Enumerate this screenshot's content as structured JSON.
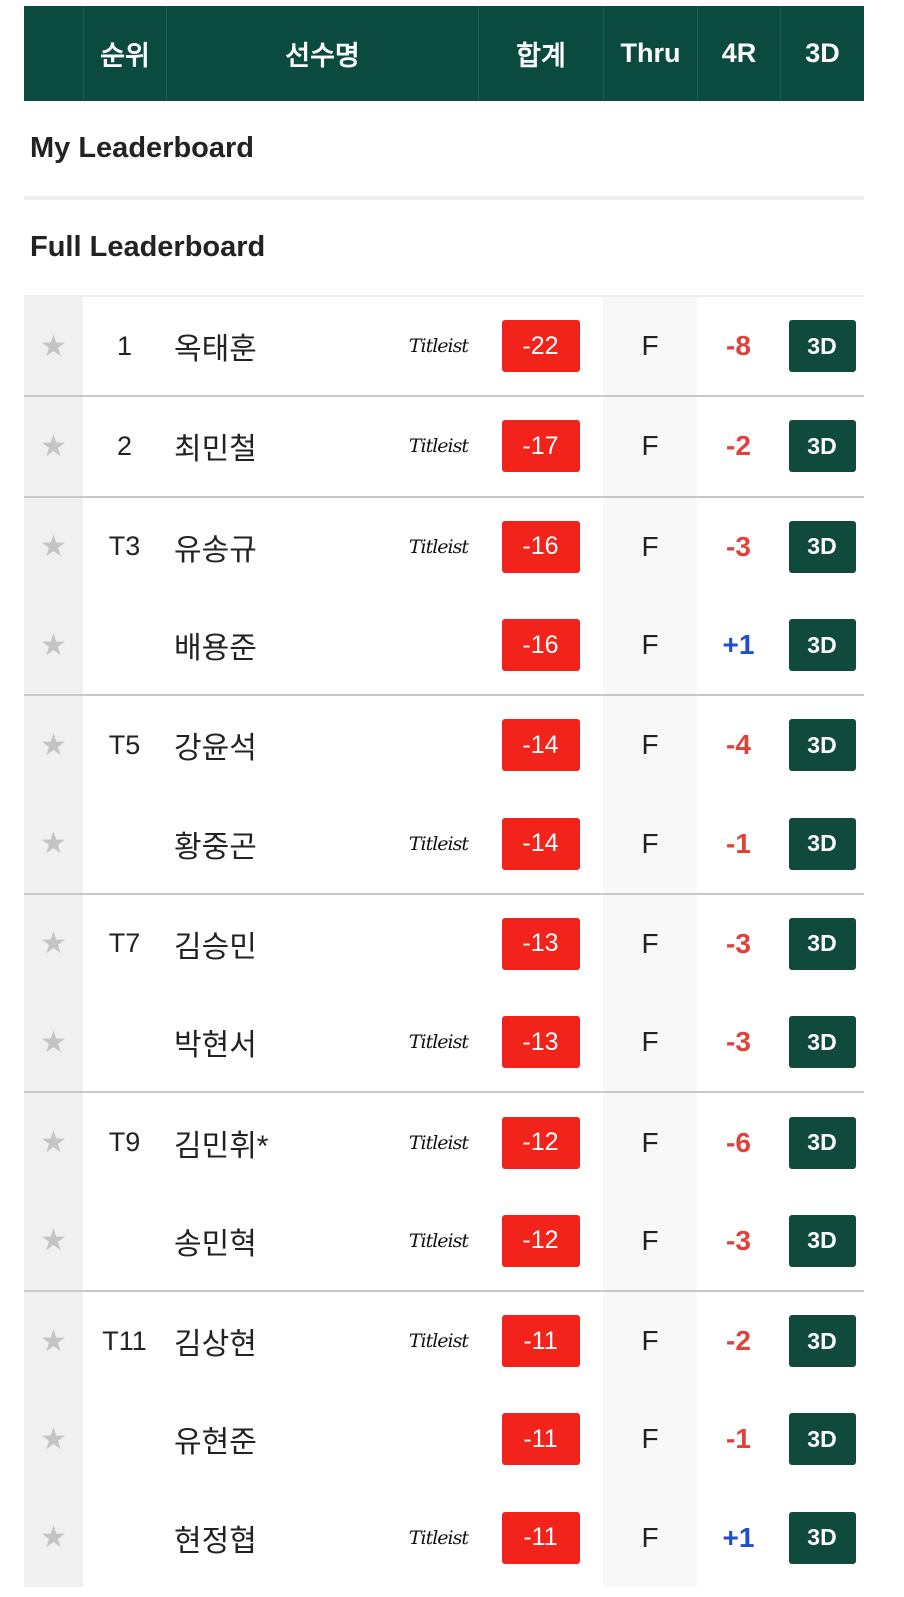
{
  "header": {
    "columns": [
      "",
      "순위",
      "선수명",
      "합계",
      "Thru",
      "4R",
      "3D"
    ]
  },
  "sections": {
    "my": "My Leaderboard",
    "full": "Full Leaderboard"
  },
  "colors": {
    "header_bg": "#0b4a3e",
    "score_bg": "#f2231b",
    "over_par": "#1f4fd0",
    "under_par": "#e0413a",
    "button_bg": "#0f4a3d"
  },
  "rows": [
    {
      "rank": "1",
      "name": "옥태훈",
      "sponsor": "Titleist",
      "total": "-22",
      "thru": "F",
      "r4": "-8",
      "btn": "3D",
      "group_start": true
    },
    {
      "rank": "2",
      "name": "최민철",
      "sponsor": "Titleist",
      "total": "-17",
      "thru": "F",
      "r4": "-2",
      "btn": "3D",
      "group_start": true
    },
    {
      "rank": "T3",
      "name": "유송규",
      "sponsor": "Titleist",
      "total": "-16",
      "thru": "F",
      "r4": "-3",
      "btn": "3D",
      "group_start": true
    },
    {
      "rank": "",
      "name": "배용준",
      "sponsor": "",
      "total": "-16",
      "thru": "F",
      "r4": "+1",
      "btn": "3D",
      "group_start": false
    },
    {
      "rank": "T5",
      "name": "강윤석",
      "sponsor": "",
      "total": "-14",
      "thru": "F",
      "r4": "-4",
      "btn": "3D",
      "group_start": true
    },
    {
      "rank": "",
      "name": "황중곤",
      "sponsor": "Titleist",
      "total": "-14",
      "thru": "F",
      "r4": "-1",
      "btn": "3D",
      "group_start": false
    },
    {
      "rank": "T7",
      "name": "김승민",
      "sponsor": "",
      "total": "-13",
      "thru": "F",
      "r4": "-3",
      "btn": "3D",
      "group_start": true
    },
    {
      "rank": "",
      "name": "박현서",
      "sponsor": "Titleist",
      "total": "-13",
      "thru": "F",
      "r4": "-3",
      "btn": "3D",
      "group_start": false
    },
    {
      "rank": "T9",
      "name": "김민휘*",
      "sponsor": "Titleist",
      "total": "-12",
      "thru": "F",
      "r4": "-6",
      "btn": "3D",
      "group_start": true
    },
    {
      "rank": "",
      "name": "송민혁",
      "sponsor": "Titleist",
      "total": "-12",
      "thru": "F",
      "r4": "-3",
      "btn": "3D",
      "group_start": false
    },
    {
      "rank": "T11",
      "name": "김상현",
      "sponsor": "Titleist",
      "total": "-11",
      "thru": "F",
      "r4": "-2",
      "btn": "3D",
      "group_start": true
    },
    {
      "rank": "",
      "name": "유현준",
      "sponsor": "",
      "total": "-11",
      "thru": "F",
      "r4": "-1",
      "btn": "3D",
      "group_start": false
    },
    {
      "rank": "",
      "name": "현정협",
      "sponsor": "Titleist",
      "total": "-11",
      "thru": "F",
      "r4": "+1",
      "btn": "3D",
      "group_start": false
    }
  ]
}
